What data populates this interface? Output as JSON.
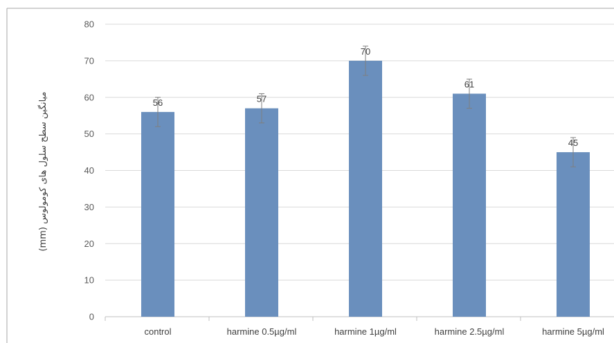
{
  "chart_data": {
    "type": "bar",
    "title": "",
    "xlabel": "",
    "ylabel": "میانگین سطح سلول های کومولوس (mm)",
    "categories": [
      "control",
      "harmine 0.5µg/ml",
      "harmine 1µg/ml",
      "harmine 2.5µg/ml",
      "harmine 5µg/ml"
    ],
    "values": [
      56,
      57,
      70,
      61,
      45
    ],
    "error": [
      4,
      4,
      4,
      4,
      4
    ],
    "data_labels": [
      "56",
      "57",
      "70",
      "61",
      "45"
    ],
    "ylim": [
      0,
      80
    ],
    "yticks": [
      0,
      10,
      20,
      30,
      40,
      50,
      60,
      70,
      80
    ],
    "grid": true,
    "legend": "none",
    "bar_color": "#6a8fbd"
  }
}
